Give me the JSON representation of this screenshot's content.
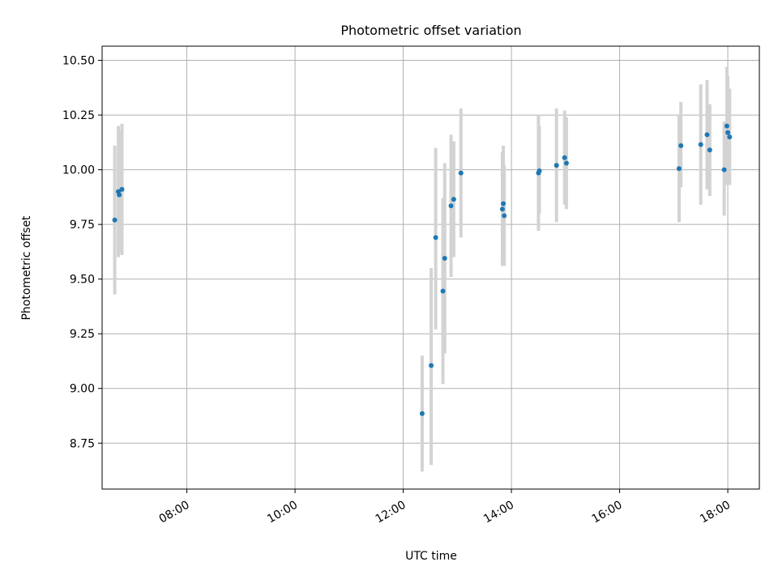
{
  "chart_data": {
    "type": "scatter",
    "title": "Photometric offset variation",
    "xlabel": "UTC time",
    "ylabel": "Photometric offset",
    "xlim": [
      "06:26",
      "18:35"
    ],
    "ylim": [
      8.54,
      10.565
    ],
    "x_tick_labels": [
      "08:00",
      "10:00",
      "12:00",
      "14:00",
      "16:00",
      "18:00"
    ],
    "x_ticks": [
      "08:00",
      "10:00",
      "12:00",
      "14:00",
      "16:00",
      "18:00"
    ],
    "y_tick_labels": [
      "8.75",
      "9.00",
      "9.25",
      "9.50",
      "9.75",
      "10.00",
      "10.25",
      "10.50"
    ],
    "y_ticks": [
      8.75,
      9.0,
      9.25,
      9.5,
      9.75,
      10.0,
      10.25,
      10.5
    ],
    "grid": true,
    "legend": "none",
    "colors": {
      "points": "#1f77b4",
      "errorbars": "#d3d3d3",
      "grid": "#b0b0b0"
    },
    "series": [
      {
        "points": [
          {
            "x": "06:40",
            "y": 9.77,
            "ylo": 9.43,
            "yhi": 10.11
          },
          {
            "x": "06:44",
            "y": 9.9,
            "ylo": 9.6,
            "yhi": 10.2
          },
          {
            "x": "06:45",
            "y": 9.885,
            "ylo": 9.62,
            "yhi": 10.18
          },
          {
            "x": "06:48",
            "y": 9.91,
            "ylo": 9.61,
            "yhi": 10.21
          },
          {
            "x": "12:21",
            "y": 8.885,
            "ylo": 8.62,
            "yhi": 9.15
          },
          {
            "x": "12:31",
            "y": 9.105,
            "ylo": 8.65,
            "yhi": 9.55
          },
          {
            "x": "12:36",
            "y": 9.69,
            "ylo": 9.27,
            "yhi": 10.1
          },
          {
            "x": "12:44",
            "y": 9.445,
            "ylo": 9.02,
            "yhi": 9.87
          },
          {
            "x": "12:46",
            "y": 9.595,
            "ylo": 9.16,
            "yhi": 10.03
          },
          {
            "x": "12:53",
            "y": 9.835,
            "ylo": 9.51,
            "yhi": 10.16
          },
          {
            "x": "12:56",
            "y": 9.865,
            "ylo": 9.6,
            "yhi": 10.13
          },
          {
            "x": "13:04",
            "y": 9.985,
            "ylo": 9.69,
            "yhi": 10.28
          },
          {
            "x": "13:50",
            "y": 9.82,
            "ylo": 9.56,
            "yhi": 10.08
          },
          {
            "x": "13:51",
            "y": 9.845,
            "ylo": 9.58,
            "yhi": 10.11
          },
          {
            "x": "13:52",
            "y": 9.79,
            "ylo": 9.56,
            "yhi": 10.02
          },
          {
            "x": "14:30",
            "y": 9.985,
            "ylo": 9.72,
            "yhi": 10.25
          },
          {
            "x": "14:31",
            "y": 9.995,
            "ylo": 9.8,
            "yhi": 10.2
          },
          {
            "x": "14:50",
            "y": 10.02,
            "ylo": 9.76,
            "yhi": 10.28
          },
          {
            "x": "14:59",
            "y": 10.055,
            "ylo": 9.84,
            "yhi": 10.27
          },
          {
            "x": "15:01",
            "y": 10.03,
            "ylo": 9.82,
            "yhi": 10.24
          },
          {
            "x": "17:06",
            "y": 10.005,
            "ylo": 9.76,
            "yhi": 10.25
          },
          {
            "x": "17:08",
            "y": 10.11,
            "ylo": 9.92,
            "yhi": 10.31
          },
          {
            "x": "17:30",
            "y": 10.115,
            "ylo": 9.84,
            "yhi": 10.39
          },
          {
            "x": "17:37",
            "y": 10.16,
            "ylo": 9.91,
            "yhi": 10.41
          },
          {
            "x": "17:40",
            "y": 10.09,
            "ylo": 9.88,
            "yhi": 10.3
          },
          {
            "x": "17:56",
            "y": 10.0,
            "ylo": 9.79,
            "yhi": 10.22
          },
          {
            "x": "17:59",
            "y": 10.2,
            "ylo": 9.93,
            "yhi": 10.47
          },
          {
            "x": "18:00",
            "y": 10.17,
            "ylo": 9.95,
            "yhi": 10.43
          },
          {
            "x": "18:02",
            "y": 10.15,
            "ylo": 9.93,
            "yhi": 10.37
          }
        ]
      }
    ]
  }
}
